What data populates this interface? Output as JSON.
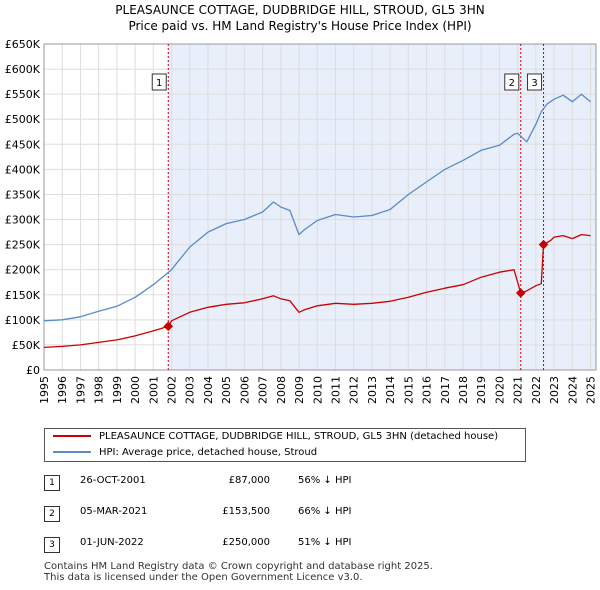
{
  "title_line1": "PLEASAUNCE COTTAGE, DUDBRIDGE HILL, STROUD, GL5 3HN",
  "title_line2": "Price paid vs. HM Land Registry's House Price Index (HPI)",
  "colors": {
    "property": "#cc0000",
    "hpi": "#5a8bc8",
    "shade": "#e8eefa",
    "marker_line": "#cc0000",
    "grid": "#dddddd"
  },
  "chart_data": {
    "type": "line",
    "title": "PLEASAUNCE COTTAGE, DUDBRIDGE HILL, STROUD, GL5 3HN — Price paid vs. HM Land Registry's House Price Index (HPI)",
    "xlim": [
      1995,
      2025.3
    ],
    "ylim": [
      0,
      650000
    ],
    "y_ticks": [
      0,
      50000,
      100000,
      150000,
      200000,
      250000,
      300000,
      350000,
      400000,
      450000,
      500000,
      550000,
      600000,
      650000
    ],
    "y_tick_labels": [
      "£0",
      "£50K",
      "£100K",
      "£150K",
      "£200K",
      "£250K",
      "£300K",
      "£350K",
      "£400K",
      "£450K",
      "£500K",
      "£550K",
      "£600K",
      "£650K"
    ],
    "x_ticks": [
      1995,
      1996,
      1997,
      1998,
      1999,
      2000,
      2001,
      2002,
      2003,
      2004,
      2005,
      2006,
      2007,
      2008,
      2009,
      2010,
      2011,
      2012,
      2013,
      2014,
      2015,
      2016,
      2017,
      2018,
      2019,
      2020,
      2021,
      2022,
      2023,
      2024,
      2025
    ],
    "x_tick_labels": [
      "1995",
      "1996",
      "1997",
      "1998",
      "1999",
      "2000",
      "2001",
      "2002",
      "2003",
      "2004",
      "2005",
      "2006",
      "2007",
      "2008",
      "2009",
      "2010",
      "2011",
      "2012",
      "2013",
      "2014",
      "2015",
      "2016",
      "2017",
      "2018",
      "2019",
      "2020",
      "2021",
      "2022",
      "2023",
      "2024",
      "2025"
    ],
    "grid": true,
    "shaded_span": [
      2001.82,
      2025.3
    ],
    "series": [
      {
        "name": "PLEASAUNCE COTTAGE, DUDBRIDGE HILL, STROUD, GL5 3HN (detached house)",
        "x": [
          1995,
          1996,
          1997,
          1998,
          1999,
          2000,
          2001,
          2001.82,
          2002,
          2003,
          2004,
          2005,
          2006,
          2007,
          2007.6,
          2008,
          2008.5,
          2009,
          2009.3,
          2010,
          2011,
          2012,
          2013,
          2014,
          2015,
          2016,
          2017,
          2018,
          2019,
          2020,
          2020.8,
          2021.17,
          2021.5,
          2022,
          2022.3,
          2022.42,
          2022.8,
          2023,
          2023.5,
          2024,
          2024.5,
          2025
        ],
        "values": [
          45000,
          47000,
          50000,
          55000,
          60000,
          68000,
          78000,
          87000,
          98000,
          115000,
          125000,
          131000,
          134000,
          142000,
          148000,
          142000,
          138000,
          115000,
          120000,
          128000,
          133000,
          131000,
          133000,
          137000,
          145000,
          155000,
          163000,
          170000,
          185000,
          195000,
          200000,
          153500,
          158000,
          168000,
          172000,
          250000,
          258000,
          265000,
          268000,
          262000,
          270000,
          268000
        ]
      },
      {
        "name": "HPI: Average price, detached house, Stroud",
        "x": [
          1995,
          1996,
          1997,
          1998,
          1999,
          2000,
          2001,
          2002,
          2003,
          2004,
          2005,
          2006,
          2007,
          2007.6,
          2008,
          2008.5,
          2009,
          2009.3,
          2010,
          2011,
          2012,
          2013,
          2014,
          2015,
          2016,
          2017,
          2018,
          2019,
          2020,
          2020.8,
          2021,
          2021.5,
          2022,
          2022.3,
          2022.6,
          2023,
          2023.5,
          2024,
          2024.5,
          2025
        ],
        "values": [
          98000,
          100000,
          106000,
          117000,
          127000,
          145000,
          170000,
          200000,
          245000,
          275000,
          292000,
          300000,
          315000,
          335000,
          325000,
          318000,
          270000,
          280000,
          298000,
          310000,
          305000,
          308000,
          320000,
          350000,
          375000,
          400000,
          418000,
          438000,
          448000,
          470000,
          472000,
          455000,
          490000,
          515000,
          530000,
          540000,
          548000,
          535000,
          550000,
          535000
        ]
      }
    ],
    "sales": [
      {
        "label": "1",
        "x": 2001.82,
        "value": 87000
      },
      {
        "label": "2",
        "x": 2021.17,
        "value": 153500
      },
      {
        "label": "3",
        "x": 2022.42,
        "value": 250000
      }
    ]
  },
  "legend": {
    "property_label": "PLEASAUNCE COTTAGE, DUDBRIDGE HILL, STROUD, GL5 3HN (detached house)",
    "hpi_label": "HPI: Average price, detached house, Stroud"
  },
  "sales_table": [
    {
      "num": "1",
      "date": "26-OCT-2001",
      "price": "£87,000",
      "hpi": "56% ↓ HPI"
    },
    {
      "num": "2",
      "date": "05-MAR-2021",
      "price": "£153,500",
      "hpi": "66% ↓ HPI"
    },
    {
      "num": "3",
      "date": "01-JUN-2022",
      "price": "£250,000",
      "hpi": "51% ↓ HPI"
    }
  ],
  "footer": {
    "line1": "Contains HM Land Registry data © Crown copyright and database right 2025.",
    "line2": "This data is licensed under the Open Government Licence v3.0."
  }
}
